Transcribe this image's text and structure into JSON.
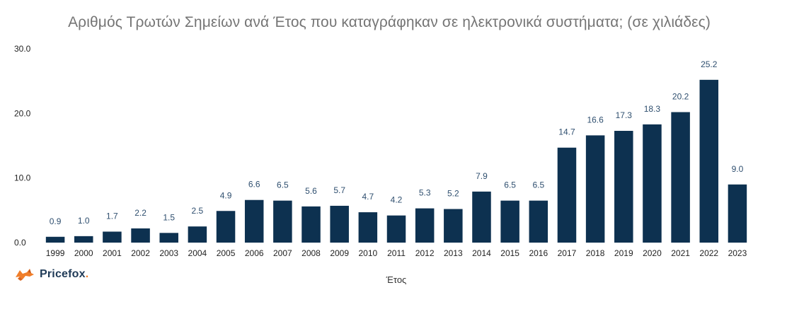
{
  "title": "Αριθμός Τρωτών Σημείων ανά Έτος που καταγράφηκαν σε ηλεκτρονικά συστήματα; (σε χιλιάδες)",
  "logo": {
    "name": "Pricefox",
    "dot": ".",
    "accent": "#f07e2a",
    "text_color": "#1f3a57"
  },
  "chart_data": {
    "type": "bar",
    "title": "Αριθμός Τρωτών Σημείων ανά Έτος που καταγράφηκαν σε ηλεκτρονικά συστήματα; (σε χιλιάδες)",
    "xlabel": "Έτος",
    "ylabel": "",
    "categories": [
      "1999",
      "2000",
      "2001",
      "2002",
      "2003",
      "2004",
      "2005",
      "2006",
      "2007",
      "2008",
      "2009",
      "2010",
      "2011",
      "2012",
      "2013",
      "2014",
      "2015",
      "2016",
      "2017",
      "2018",
      "2019",
      "2020",
      "2021",
      "2022",
      "2023"
    ],
    "values": [
      0.9,
      1.0,
      1.7,
      2.2,
      1.5,
      2.5,
      4.9,
      6.6,
      6.5,
      5.6,
      5.7,
      4.7,
      4.2,
      5.3,
      5.2,
      7.9,
      6.5,
      6.5,
      14.7,
      16.6,
      17.3,
      18.3,
      20.2,
      25.2,
      9.0
    ],
    "value_labels": [
      "0.9",
      "1.0",
      "1.7",
      "2.2",
      "1.5",
      "2.5",
      "4.9",
      "6.6",
      "6.5",
      "5.6",
      "5.7",
      "4.7",
      "4.2",
      "5.3",
      "5.2",
      "7.9",
      "6.5",
      "6.5",
      "14.7",
      "16.6",
      "17.3",
      "18.3",
      "20.2",
      "25.2",
      "9.0"
    ],
    "yticks": [
      "0.0",
      "10.0",
      "20.0",
      "30.0"
    ],
    "ylim": [
      0,
      30
    ],
    "grid": false,
    "bar_color": "#0d3150",
    "label_color": "#2f4f6f"
  }
}
